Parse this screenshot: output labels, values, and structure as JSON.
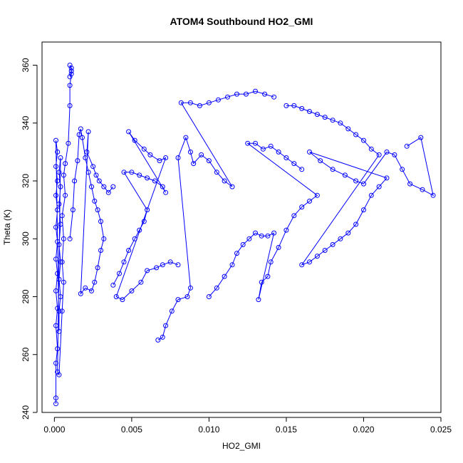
{
  "chart_data": {
    "type": "scatter",
    "title": "ATOM4 Southbound HO2_GMI",
    "xlabel": "HO2_GMI",
    "ylabel": "Theta (K)",
    "xlim": [
      -0.0008,
      0.025
    ],
    "ylim": [
      240,
      368
    ],
    "x_ticks": [
      0.0,
      0.005,
      0.01,
      0.015,
      0.02,
      0.025
    ],
    "x_tick_labels": [
      "0.000",
      "0.005",
      "0.010",
      "0.015",
      "0.020",
      "0.025"
    ],
    "y_ticks": [
      240,
      260,
      280,
      300,
      320,
      340,
      360
    ],
    "y_tick_labels": [
      "240",
      "260",
      "280",
      "300",
      "320",
      "340",
      "360"
    ],
    "color": "#0000ff",
    "marker": "open-circle",
    "connected": true,
    "grid": false,
    "series": [
      {
        "points": [
          [
            0.0001,
            243
          ],
          [
            0.0001,
            245
          ],
          [
            0.0001,
            257
          ],
          [
            0.0002,
            262
          ],
          [
            0.0001,
            270
          ],
          [
            0.0002,
            276
          ],
          [
            0.0001,
            282
          ],
          [
            0.0002,
            288
          ],
          [
            0.0001,
            293
          ],
          [
            0.0002,
            299
          ],
          [
            0.0001,
            304
          ],
          [
            0.0002,
            310
          ],
          [
            0.0001,
            315
          ],
          [
            0.0002,
            320
          ],
          [
            0.0001,
            325
          ],
          [
            0.0002,
            330
          ],
          [
            0.0001,
            334
          ],
          [
            0.0003,
            268
          ],
          [
            0.0003,
            275
          ],
          [
            0.0004,
            280
          ],
          [
            0.0003,
            286
          ],
          [
            0.0004,
            292
          ],
          [
            0.0003,
            298
          ],
          [
            0.0004,
            305
          ],
          [
            0.0003,
            312
          ],
          [
            0.0004,
            318
          ],
          [
            0.0003,
            323
          ],
          [
            0.0004,
            328
          ],
          [
            0.0002,
            254
          ],
          [
            0.0003,
            253
          ],
          [
            0.0005,
            275
          ],
          [
            0.0006,
            285
          ],
          [
            0.0005,
            292
          ],
          [
            0.0006,
            300
          ],
          [
            0.0005,
            308
          ],
          [
            0.0007,
            315
          ],
          [
            0.0006,
            322
          ],
          [
            0.0007,
            326
          ],
          [
            0.0009,
            333
          ],
          [
            0.001,
            346
          ],
          [
            0.001,
            353
          ],
          [
            0.0011,
            357
          ],
          [
            0.0011,
            359
          ],
          [
            0.001,
            360
          ],
          [
            0.0011,
            358
          ],
          [
            0.001,
            356
          ]
        ]
      },
      {
        "points": [
          [
            0.001,
            300
          ],
          [
            0.0012,
            310
          ],
          [
            0.0013,
            320
          ],
          [
            0.0015,
            327
          ],
          [
            0.0016,
            336
          ],
          [
            0.0017,
            338
          ],
          [
            0.0018,
            335
          ],
          [
            0.002,
            328
          ],
          [
            0.0022,
            323
          ],
          [
            0.0024,
            318
          ],
          [
            0.0026,
            313
          ],
          [
            0.0028,
            310
          ],
          [
            0.003,
            306
          ],
          [
            0.0032,
            300
          ],
          [
            0.003,
            296
          ],
          [
            0.0028,
            290
          ],
          [
            0.0026,
            285
          ],
          [
            0.0024,
            282
          ],
          [
            0.002,
            283
          ],
          [
            0.0017,
            281
          ],
          [
            0.0022,
            337
          ],
          [
            0.0021,
            330
          ],
          [
            0.0025,
            325
          ],
          [
            0.0027,
            322
          ],
          [
            0.0029,
            320
          ],
          [
            0.0032,
            318
          ],
          [
            0.0035,
            316
          ],
          [
            0.0038,
            318
          ]
        ]
      },
      {
        "points": [
          [
            0.0038,
            284
          ],
          [
            0.0042,
            288
          ],
          [
            0.0045,
            292
          ],
          [
            0.0048,
            296
          ],
          [
            0.0052,
            300
          ],
          [
            0.0055,
            303
          ],
          [
            0.0058,
            306
          ],
          [
            0.006,
            310
          ],
          [
            0.0045,
            323
          ],
          [
            0.005,
            323
          ],
          [
            0.0055,
            322
          ],
          [
            0.006,
            321
          ],
          [
            0.0065,
            320
          ],
          [
            0.007,
            318
          ],
          [
            0.0072,
            316
          ],
          [
            0.0048,
            337
          ],
          [
            0.0052,
            334
          ],
          [
            0.0058,
            331
          ],
          [
            0.0062,
            329
          ],
          [
            0.0068,
            327
          ],
          [
            0.0072,
            328
          ],
          [
            0.004,
            280
          ],
          [
            0.0044,
            279
          ],
          [
            0.005,
            282
          ],
          [
            0.0056,
            285
          ],
          [
            0.006,
            289
          ],
          [
            0.0066,
            290
          ],
          [
            0.007,
            291
          ],
          [
            0.0075,
            292
          ],
          [
            0.008,
            291
          ]
        ]
      },
      {
        "points": [
          [
            0.0067,
            265
          ],
          [
            0.007,
            266
          ],
          [
            0.0072,
            270
          ],
          [
            0.0076,
            275
          ],
          [
            0.008,
            279
          ],
          [
            0.0086,
            280
          ],
          [
            0.0088,
            283
          ],
          [
            0.008,
            328
          ],
          [
            0.0085,
            335
          ],
          [
            0.0088,
            330
          ],
          [
            0.009,
            326
          ],
          [
            0.0095,
            329
          ],
          [
            0.01,
            327
          ],
          [
            0.0105,
            323
          ],
          [
            0.011,
            320
          ],
          [
            0.0115,
            318
          ],
          [
            0.0082,
            347
          ],
          [
            0.0088,
            347
          ],
          [
            0.0094,
            346
          ],
          [
            0.01,
            347
          ],
          [
            0.0106,
            348
          ],
          [
            0.0112,
            349
          ],
          [
            0.0118,
            350
          ],
          [
            0.0124,
            350
          ],
          [
            0.013,
            351
          ],
          [
            0.0136,
            350
          ],
          [
            0.0142,
            349
          ]
        ]
      },
      {
        "points": [
          [
            0.01,
            280
          ],
          [
            0.0105,
            283
          ],
          [
            0.011,
            287
          ],
          [
            0.0115,
            291
          ],
          [
            0.0118,
            295
          ],
          [
            0.0122,
            298
          ],
          [
            0.0126,
            300
          ],
          [
            0.013,
            302
          ],
          [
            0.0134,
            301
          ],
          [
            0.0138,
            301
          ],
          [
            0.0142,
            302
          ],
          [
            0.0132,
            279
          ],
          [
            0.0134,
            285
          ],
          [
            0.0138,
            287
          ],
          [
            0.014,
            292
          ],
          [
            0.0145,
            297
          ],
          [
            0.015,
            303
          ],
          [
            0.0155,
            308
          ],
          [
            0.016,
            311
          ],
          [
            0.0165,
            313
          ],
          [
            0.017,
            315
          ],
          [
            0.0125,
            333
          ],
          [
            0.013,
            333
          ],
          [
            0.0135,
            331
          ],
          [
            0.014,
            332
          ],
          [
            0.0145,
            330
          ],
          [
            0.015,
            328
          ],
          [
            0.0155,
            326
          ],
          [
            0.016,
            324
          ]
        ]
      },
      {
        "points": [
          [
            0.015,
            346
          ],
          [
            0.0155,
            346
          ],
          [
            0.016,
            345
          ],
          [
            0.0165,
            344
          ],
          [
            0.017,
            343
          ],
          [
            0.0175,
            342
          ],
          [
            0.018,
            341
          ],
          [
            0.0185,
            340
          ],
          [
            0.019,
            338
          ],
          [
            0.0195,
            336
          ],
          [
            0.02,
            334
          ],
          [
            0.0205,
            331
          ],
          [
            0.021,
            329
          ],
          [
            0.016,
            291
          ],
          [
            0.0165,
            292
          ],
          [
            0.017,
            294
          ],
          [
            0.0175,
            296
          ],
          [
            0.018,
            298
          ],
          [
            0.0185,
            300
          ],
          [
            0.019,
            302
          ],
          [
            0.0195,
            305
          ],
          [
            0.02,
            310
          ],
          [
            0.0205,
            315
          ],
          [
            0.021,
            318
          ],
          [
            0.0215,
            321
          ],
          [
            0.0165,
            330
          ],
          [
            0.0172,
            327
          ],
          [
            0.018,
            324
          ],
          [
            0.0188,
            322
          ],
          [
            0.0195,
            320
          ],
          [
            0.02,
            319
          ],
          [
            0.0215,
            330
          ],
          [
            0.022,
            329
          ],
          [
            0.0225,
            324
          ],
          [
            0.023,
            319
          ],
          [
            0.0238,
            317
          ],
          [
            0.0245,
            315
          ],
          [
            0.0237,
            335
          ],
          [
            0.0228,
            332
          ]
        ]
      }
    ]
  }
}
